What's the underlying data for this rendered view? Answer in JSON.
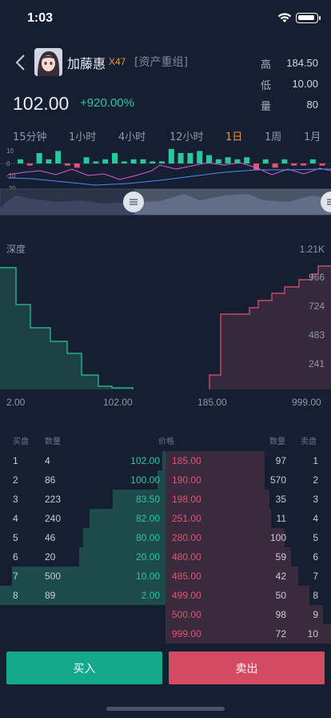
{
  "status": {
    "time": "1:03"
  },
  "header": {
    "name": "加藤惠",
    "badge": "X47",
    "tag": "[资产重组]",
    "price": "102.00",
    "change": "+920.00%",
    "stats": [
      {
        "label": "高",
        "value": "184.50"
      },
      {
        "label": "低",
        "value": "10.00"
      },
      {
        "label": "量",
        "value": "80"
      }
    ]
  },
  "tabs": [
    "15分钟",
    "1小时",
    "4小时",
    "12小时",
    "1日",
    "1周",
    "1月"
  ],
  "active_tab": "1日",
  "kline": {
    "y_labels": [
      "10",
      "0",
      "-10",
      "-20"
    ],
    "volume": [
      2,
      -1,
      5,
      2,
      6,
      -1,
      -2,
      3,
      1,
      2,
      5,
      1,
      2,
      2,
      1,
      1,
      7,
      5,
      5,
      6,
      4,
      2,
      3,
      2,
      3,
      -3,
      2,
      -2,
      2,
      -1,
      -1,
      2,
      -1
    ]
  },
  "depth": {
    "title": "深度",
    "max_label": "1.21K",
    "y_ticks": [
      "966",
      "724",
      "483",
      "241"
    ],
    "x_labels": [
      "2.00",
      "102.00",
      "185.00",
      "999.00"
    ]
  },
  "orderbook": {
    "headers": {
      "buy_index": "买盘",
      "buy_qty": "数量",
      "price": "价格",
      "sell_qty": "数量",
      "sell_index": "卖盘"
    },
    "bids": [
      {
        "index": "1",
        "qty": "4",
        "price": "102.00",
        "depth": 0.02
      },
      {
        "index": "2",
        "qty": "86",
        "price": "100.00",
        "depth": 0.05
      },
      {
        "index": "3",
        "qty": "223",
        "price": "83.50",
        "depth": 0.32
      },
      {
        "index": "4",
        "qty": "240",
        "price": "82.00",
        "depth": 0.46
      },
      {
        "index": "5",
        "qty": "46",
        "price": "80.00",
        "depth": 0.5
      },
      {
        "index": "6",
        "qty": "20",
        "price": "20.00",
        "depth": 0.52
      },
      {
        "index": "7",
        "qty": "500",
        "price": "10.00",
        "depth": 0.93
      },
      {
        "index": "8",
        "qty": "89",
        "price": "2.00",
        "depth": 1.0
      }
    ],
    "asks": [
      {
        "index": "1",
        "qty": "97",
        "price": "185.00",
        "depth": 0.6
      },
      {
        "index": "2",
        "qty": "570",
        "price": "190.00",
        "depth": 0.6
      },
      {
        "index": "3",
        "qty": "35",
        "price": "198.00",
        "depth": 0.63
      },
      {
        "index": "4",
        "qty": "11",
        "price": "251.00",
        "depth": 0.64
      },
      {
        "index": "5",
        "qty": "100",
        "price": "280.00",
        "depth": 0.72
      },
      {
        "index": "6",
        "qty": "59",
        "price": "480.00",
        "depth": 0.76
      },
      {
        "index": "7",
        "qty": "42",
        "price": "485.00",
        "depth": 0.8
      },
      {
        "index": "8",
        "qty": "50",
        "price": "499.00",
        "depth": 0.87
      },
      {
        "index": "9",
        "qty": "98",
        "price": "500.00",
        "depth": 0.95
      },
      {
        "index": "10",
        "qty": "72",
        "price": "999.00",
        "depth": 1.0
      }
    ]
  },
  "actions": {
    "buy": "买入",
    "sell": "卖出"
  },
  "colors": {
    "buy": "#27c89c",
    "sell": "#e4546c",
    "accent": "#f0963c",
    "background": "#161e32"
  }
}
